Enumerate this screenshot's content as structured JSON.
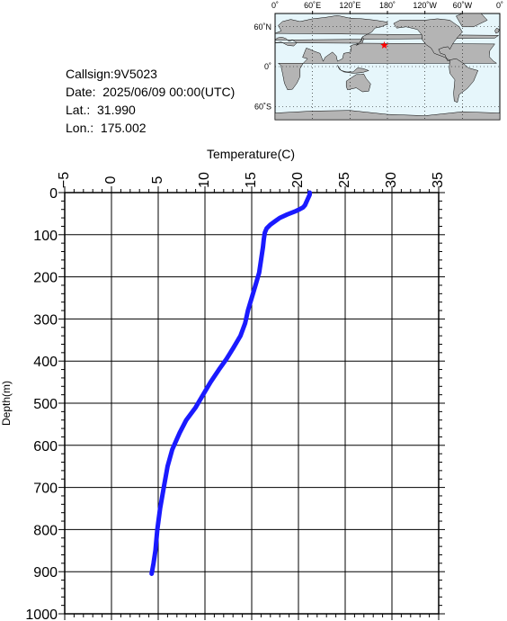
{
  "info": {
    "callsign": "Callsign:9V5023",
    "date": "Date:  2025/06/09 00:00(UTC)",
    "lat": "Lat.:  31.990",
    "lon": "Lon.:  175.002"
  },
  "map": {
    "top_labels": [
      "0˚",
      "60˚E",
      "120˚E",
      "180˚",
      "120˚W",
      "60˚W",
      "0˚"
    ],
    "left_labels": [
      "60˚N",
      "0˚",
      "60˚S"
    ],
    "marker": {
      "lon": 175.002,
      "lat": 31.99
    },
    "marker_color": "#ff0000",
    "ocean_color": "#e6f6fb",
    "land_color": "#b4b4b4"
  },
  "chart_data": {
    "type": "line",
    "title": "",
    "xlabel": "Temperature(C)",
    "ylabel": "Depth(m)",
    "xlim": [
      -5,
      35
    ],
    "ylim": [
      1000,
      0
    ],
    "x_ticks": [
      -5,
      0,
      5,
      10,
      15,
      20,
      25,
      30,
      35
    ],
    "y_ticks": [
      0,
      100,
      200,
      300,
      400,
      500,
      600,
      700,
      800,
      900,
      1000
    ],
    "series": [
      {
        "color": "#1a1aff",
        "points": [
          [
            21.2,
            0
          ],
          [
            21.2,
            5
          ],
          [
            21.0,
            15
          ],
          [
            20.8,
            25
          ],
          [
            20.7,
            30
          ],
          [
            20.5,
            35
          ],
          [
            20.1,
            40
          ],
          [
            19.6,
            45
          ],
          [
            18.8,
            52
          ],
          [
            18.0,
            60
          ],
          [
            17.5,
            68
          ],
          [
            17.0,
            76
          ],
          [
            16.6,
            85
          ],
          [
            16.4,
            95
          ],
          [
            16.3,
            110
          ],
          [
            16.2,
            130
          ],
          [
            16.0,
            160
          ],
          [
            15.8,
            190
          ],
          [
            15.4,
            220
          ],
          [
            15.0,
            250
          ],
          [
            14.6,
            280
          ],
          [
            14.3,
            310
          ],
          [
            13.8,
            340
          ],
          [
            13.0,
            370
          ],
          [
            12.3,
            395
          ],
          [
            11.5,
            420
          ],
          [
            10.6,
            450
          ],
          [
            9.8,
            480
          ],
          [
            9.0,
            510
          ],
          [
            8.0,
            540
          ],
          [
            7.3,
            570
          ],
          [
            6.5,
            610
          ],
          [
            6.0,
            650
          ],
          [
            5.6,
            700
          ],
          [
            5.2,
            750
          ],
          [
            4.9,
            800
          ],
          [
            4.7,
            850
          ],
          [
            4.5,
            880
          ],
          [
            4.3,
            905
          ]
        ]
      }
    ],
    "grid": true,
    "legend": "none"
  }
}
